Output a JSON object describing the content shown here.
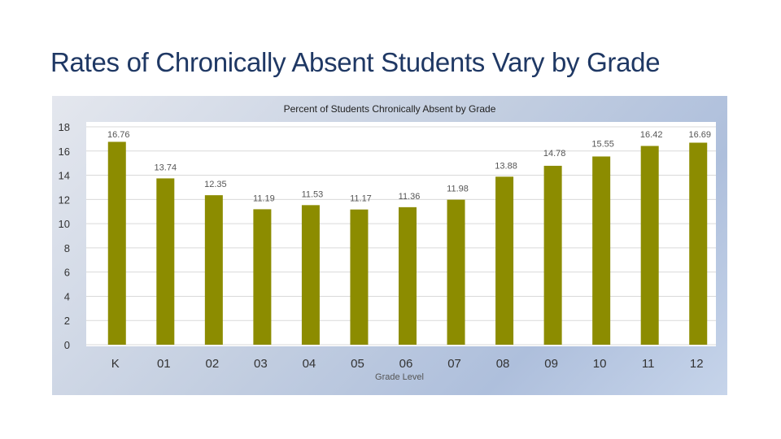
{
  "slide": {
    "title": "Rates of Chronically Absent Students Vary by Grade"
  },
  "colors": {
    "bar": "#8c8c00",
    "title": "#1f3864",
    "plot_background": "#ffffff",
    "gridline": "#d9d9d9"
  },
  "chart_data": {
    "type": "bar",
    "title": "Percent of Students Chronically Absent by Grade",
    "xlabel": "Grade Level",
    "ylabel": "",
    "categories": [
      "K",
      "01",
      "02",
      "03",
      "04",
      "05",
      "06",
      "07",
      "08",
      "09",
      "10",
      "11",
      "12"
    ],
    "values": [
      16.76,
      13.74,
      12.35,
      11.19,
      11.53,
      11.17,
      11.36,
      11.98,
      13.88,
      14.78,
      15.55,
      16.42,
      16.69
    ],
    "data_labels": [
      "16.76",
      "13.74",
      "12.35",
      "11.19",
      "11.53",
      "11.17",
      "11.36",
      "11.98",
      "13.88",
      "14.78",
      "15.55",
      "16.42",
      "16.69"
    ],
    "yticks": [
      0,
      2,
      4,
      6,
      8,
      10,
      12,
      14,
      16,
      18
    ],
    "ylim": [
      0,
      18
    ],
    "grid": true,
    "legend": "none"
  }
}
